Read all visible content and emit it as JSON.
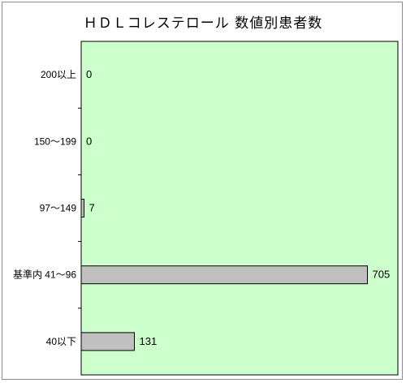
{
  "chart_data": {
    "type": "bar",
    "orientation": "horizontal",
    "title": "ＨＤＬコレステロール 数値別患者数",
    "xlabel": "",
    "ylabel": "",
    "categories": [
      "200以上",
      "150～199",
      "97～149",
      "基準内 41～96",
      "40以下"
    ],
    "values": [
      0,
      0,
      7,
      705,
      131
    ],
    "xlim": [
      0,
      780
    ],
    "grid": false,
    "legend": "none",
    "colors": {
      "plot_background": "#ccffcc",
      "bar_fill": "#c0c0c0",
      "bar_stroke": "#000000"
    }
  }
}
